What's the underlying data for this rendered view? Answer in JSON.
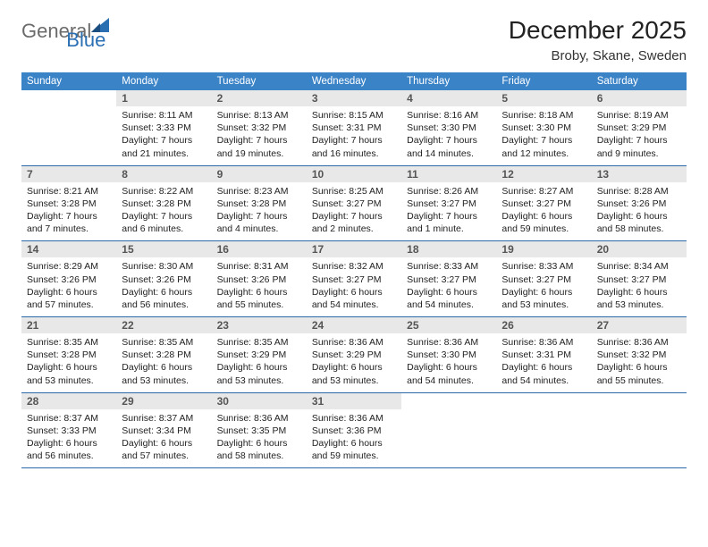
{
  "logo": {
    "line1": "General",
    "line2": "Blue"
  },
  "title": "December 2025",
  "location": "Broby, Skane, Sweden",
  "colors": {
    "header_bg": "#3b83c7",
    "header_text": "#ffffff",
    "daynum_bg": "#e8e8e8",
    "daynum_text": "#555555",
    "border": "#2a6aa8",
    "logo_gray": "#6b6b6b",
    "logo_blue": "#2b6fb3"
  },
  "daysOfWeek": [
    "Sunday",
    "Monday",
    "Tuesday",
    "Wednesday",
    "Thursday",
    "Friday",
    "Saturday"
  ],
  "weeks": [
    [
      null,
      {
        "n": 1,
        "sr": "8:11 AM",
        "ss": "3:33 PM",
        "dl": "7 hours and 21 minutes."
      },
      {
        "n": 2,
        "sr": "8:13 AM",
        "ss": "3:32 PM",
        "dl": "7 hours and 19 minutes."
      },
      {
        "n": 3,
        "sr": "8:15 AM",
        "ss": "3:31 PM",
        "dl": "7 hours and 16 minutes."
      },
      {
        "n": 4,
        "sr": "8:16 AM",
        "ss": "3:30 PM",
        "dl": "7 hours and 14 minutes."
      },
      {
        "n": 5,
        "sr": "8:18 AM",
        "ss": "3:30 PM",
        "dl": "7 hours and 12 minutes."
      },
      {
        "n": 6,
        "sr": "8:19 AM",
        "ss": "3:29 PM",
        "dl": "7 hours and 9 minutes."
      }
    ],
    [
      {
        "n": 7,
        "sr": "8:21 AM",
        "ss": "3:28 PM",
        "dl": "7 hours and 7 minutes."
      },
      {
        "n": 8,
        "sr": "8:22 AM",
        "ss": "3:28 PM",
        "dl": "7 hours and 6 minutes."
      },
      {
        "n": 9,
        "sr": "8:23 AM",
        "ss": "3:28 PM",
        "dl": "7 hours and 4 minutes."
      },
      {
        "n": 10,
        "sr": "8:25 AM",
        "ss": "3:27 PM",
        "dl": "7 hours and 2 minutes."
      },
      {
        "n": 11,
        "sr": "8:26 AM",
        "ss": "3:27 PM",
        "dl": "7 hours and 1 minute."
      },
      {
        "n": 12,
        "sr": "8:27 AM",
        "ss": "3:27 PM",
        "dl": "6 hours and 59 minutes."
      },
      {
        "n": 13,
        "sr": "8:28 AM",
        "ss": "3:26 PM",
        "dl": "6 hours and 58 minutes."
      }
    ],
    [
      {
        "n": 14,
        "sr": "8:29 AM",
        "ss": "3:26 PM",
        "dl": "6 hours and 57 minutes."
      },
      {
        "n": 15,
        "sr": "8:30 AM",
        "ss": "3:26 PM",
        "dl": "6 hours and 56 minutes."
      },
      {
        "n": 16,
        "sr": "8:31 AM",
        "ss": "3:26 PM",
        "dl": "6 hours and 55 minutes."
      },
      {
        "n": 17,
        "sr": "8:32 AM",
        "ss": "3:27 PM",
        "dl": "6 hours and 54 minutes."
      },
      {
        "n": 18,
        "sr": "8:33 AM",
        "ss": "3:27 PM",
        "dl": "6 hours and 54 minutes."
      },
      {
        "n": 19,
        "sr": "8:33 AM",
        "ss": "3:27 PM",
        "dl": "6 hours and 53 minutes."
      },
      {
        "n": 20,
        "sr": "8:34 AM",
        "ss": "3:27 PM",
        "dl": "6 hours and 53 minutes."
      }
    ],
    [
      {
        "n": 21,
        "sr": "8:35 AM",
        "ss": "3:28 PM",
        "dl": "6 hours and 53 minutes."
      },
      {
        "n": 22,
        "sr": "8:35 AM",
        "ss": "3:28 PM",
        "dl": "6 hours and 53 minutes."
      },
      {
        "n": 23,
        "sr": "8:35 AM",
        "ss": "3:29 PM",
        "dl": "6 hours and 53 minutes."
      },
      {
        "n": 24,
        "sr": "8:36 AM",
        "ss": "3:29 PM",
        "dl": "6 hours and 53 minutes."
      },
      {
        "n": 25,
        "sr": "8:36 AM",
        "ss": "3:30 PM",
        "dl": "6 hours and 54 minutes."
      },
      {
        "n": 26,
        "sr": "8:36 AM",
        "ss": "3:31 PM",
        "dl": "6 hours and 54 minutes."
      },
      {
        "n": 27,
        "sr": "8:36 AM",
        "ss": "3:32 PM",
        "dl": "6 hours and 55 minutes."
      }
    ],
    [
      {
        "n": 28,
        "sr": "8:37 AM",
        "ss": "3:33 PM",
        "dl": "6 hours and 56 minutes."
      },
      {
        "n": 29,
        "sr": "8:37 AM",
        "ss": "3:34 PM",
        "dl": "6 hours and 57 minutes."
      },
      {
        "n": 30,
        "sr": "8:36 AM",
        "ss": "3:35 PM",
        "dl": "6 hours and 58 minutes."
      },
      {
        "n": 31,
        "sr": "8:36 AM",
        "ss": "3:36 PM",
        "dl": "6 hours and 59 minutes."
      },
      null,
      null,
      null
    ]
  ],
  "labels": {
    "sunrise": "Sunrise:",
    "sunset": "Sunset:",
    "daylight": "Daylight:"
  }
}
